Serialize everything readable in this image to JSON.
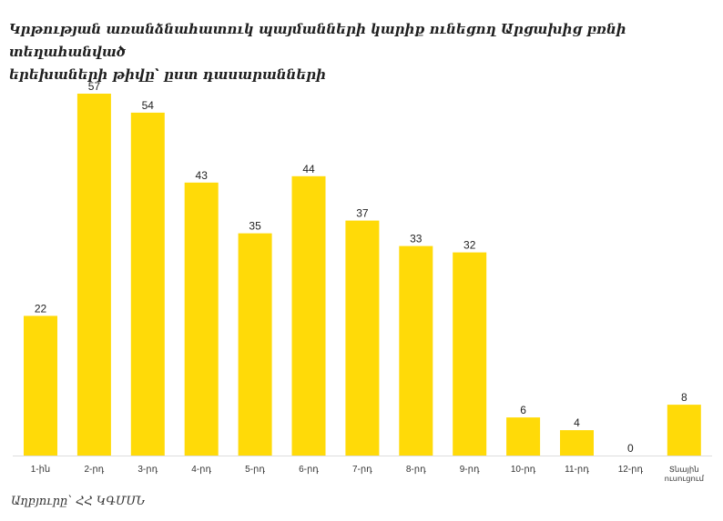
{
  "chart_data": {
    "type": "bar",
    "title": "Կրթության առանձնահատուկ պայմանների կարիք ունեցող Արցախից բռնի տեղահանված երեխաների թիվը՝ ըստ դասարանների",
    "title_lines": [
      "Կրթության առանձնահատուկ պայմանների կարիք ունեցող Արցախից բռնի տեղահանված",
      "երեխաների թիվը՝ ըստ դասարանների"
    ],
    "categories": [
      [
        "1-ին"
      ],
      [
        "2-րդ"
      ],
      [
        "3-րդ"
      ],
      [
        "4-րդ"
      ],
      [
        "5-րդ"
      ],
      [
        "6-րդ"
      ],
      [
        "7-րդ"
      ],
      [
        "8-րդ"
      ],
      [
        "9-րդ"
      ],
      [
        "10-րդ"
      ],
      [
        "11-րդ"
      ],
      [
        "12-րդ"
      ],
      [
        "Տնային",
        "ուսուցում"
      ]
    ],
    "values": [
      22,
      57,
      54,
      43,
      35,
      44,
      37,
      33,
      32,
      6,
      4,
      0,
      8
    ],
    "bar_color": "#FFDA08",
    "ylim": [
      0,
      57
    ],
    "grid": false,
    "xlabel": "",
    "ylabel": ""
  },
  "source": "Աղբյուրը՝ ՀՀ ԿԳՄՍՆ"
}
